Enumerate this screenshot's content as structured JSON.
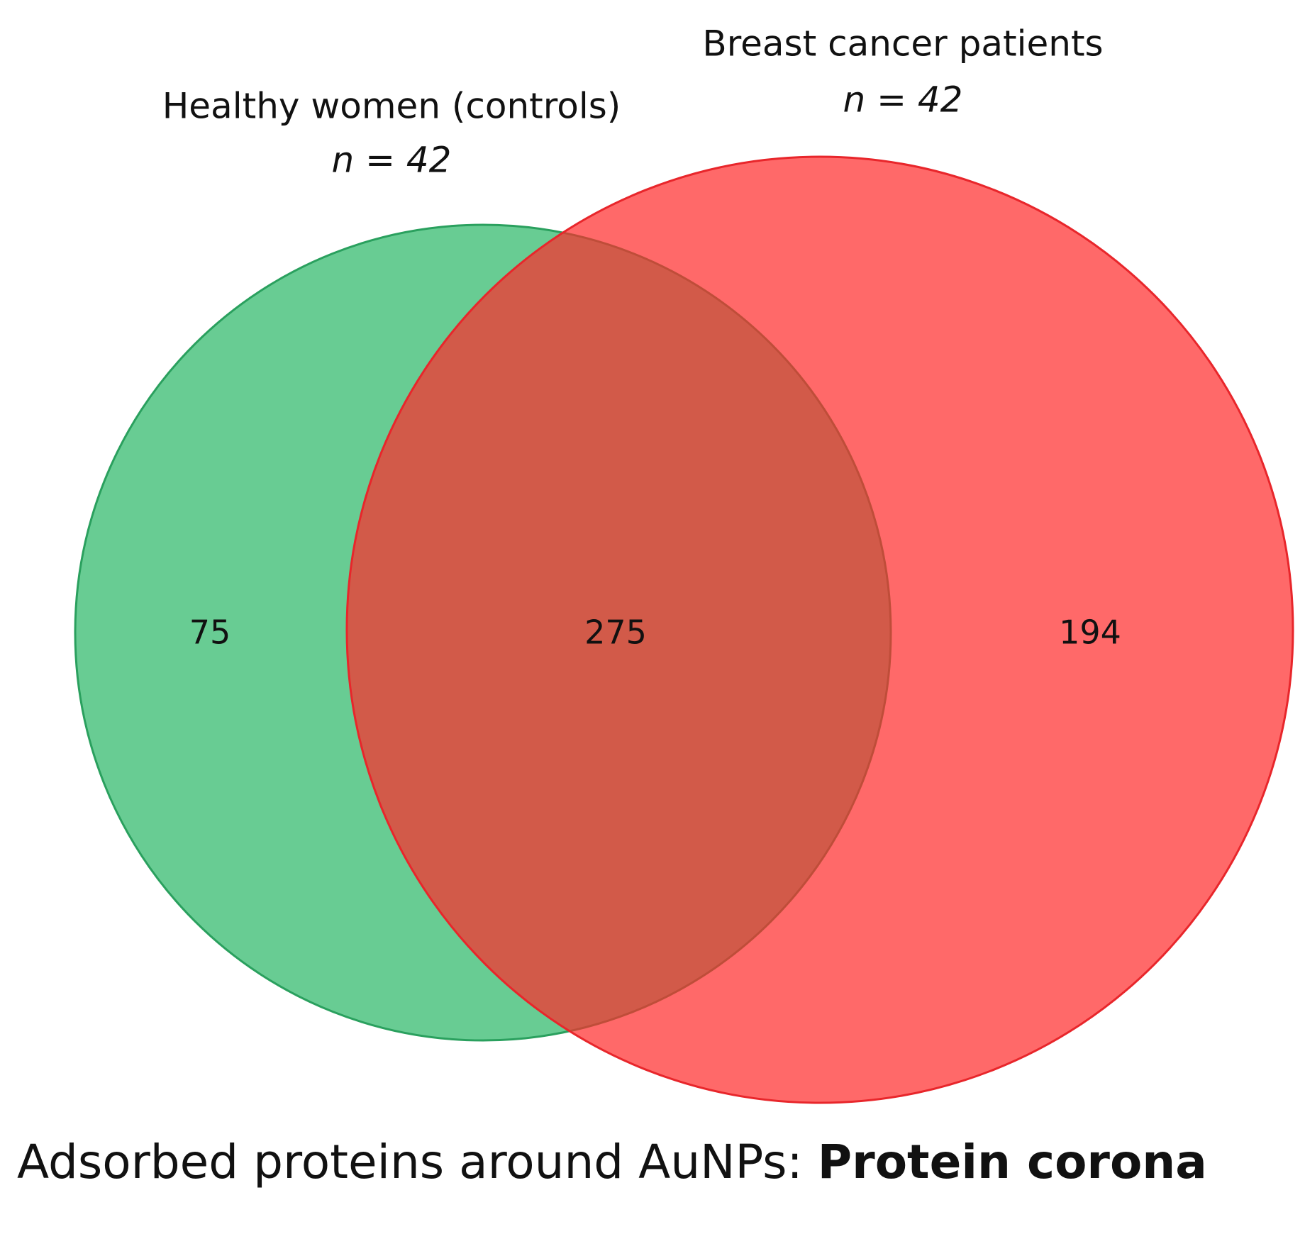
{
  "chart_data": {
    "type": "venn",
    "sets": [
      {
        "name": "Healthy women (controls)",
        "subtitle": "n = 42",
        "color": "#2eb86a",
        "stroke": "#2aa05e",
        "opacity": 0.72,
        "only": 75
      },
      {
        "name": "Breast cancer patients",
        "subtitle": "n = 42",
        "color": "#ff2a2a",
        "stroke": "#e8262b",
        "opacity": 0.7,
        "only": 194
      }
    ],
    "overlap": 275,
    "caption": "Adsorbed proteins around AuNPs:",
    "caption_bold": "Protein corona"
  }
}
